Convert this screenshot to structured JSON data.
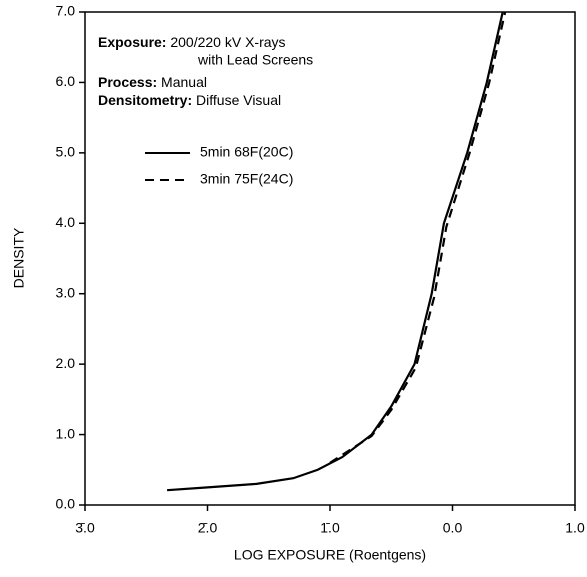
{
  "chart_data": {
    "type": "line",
    "xlabel": "LOG EXPOSURE (Roentgens)",
    "ylabel": "DENSITY",
    "annotations": [
      {
        "label": "Exposure:",
        "text": "200/220 kV X-rays"
      },
      {
        "text": "with Lead Screens"
      },
      {
        "label": "Process:",
        "text": "Manual"
      },
      {
        "label": "Densitometry:",
        "text": "Diffuse Visual"
      }
    ],
    "series": [
      {
        "name": "5min 68F(20C)",
        "color": "#000000",
        "line_style": "solid",
        "x": [
          -2.33,
          -2.0,
          -1.6,
          -1.3,
          -1.1,
          -0.9,
          -0.66,
          -0.5,
          -0.31,
          -0.17,
          -0.07,
          0.12,
          0.28,
          0.41
        ],
        "values": [
          0.21,
          0.25,
          0.3,
          0.38,
          0.5,
          0.68,
          1.0,
          1.4,
          2.0,
          3.0,
          4.0,
          5.0,
          6.0,
          7.0
        ]
      },
      {
        "name": "3min 75F(24C)",
        "color": "#000000",
        "line_style": "dashed",
        "x": [
          -1.0,
          -0.66,
          -0.5,
          -0.3,
          -0.15,
          -0.05,
          0.14,
          0.3,
          0.43
        ],
        "values": [
          0.6,
          0.98,
          1.35,
          1.95,
          2.95,
          3.95,
          5.0,
          6.0,
          7.0
        ]
      }
    ],
    "xlim": [
      -3,
      1
    ],
    "xticks": [
      {
        "value": -3,
        "label": "3̄.0"
      },
      {
        "value": -2,
        "label": "2̄.0"
      },
      {
        "value": -1,
        "label": "1̄.0"
      },
      {
        "value": 0,
        "label": "0.0"
      },
      {
        "value": 1,
        "label": "1.0"
      }
    ],
    "ylim": [
      0,
      7
    ],
    "yticks": [
      {
        "value": 0,
        "label": "0.0"
      },
      {
        "value": 1,
        "label": "1.0"
      },
      {
        "value": 2,
        "label": "2.0"
      },
      {
        "value": 3,
        "label": "3.0"
      },
      {
        "value": 4,
        "label": "4.0"
      },
      {
        "value": 5,
        "label": "5.0"
      },
      {
        "value": 6,
        "label": "6.0"
      },
      {
        "value": 7,
        "label": "7.0"
      }
    ]
  }
}
